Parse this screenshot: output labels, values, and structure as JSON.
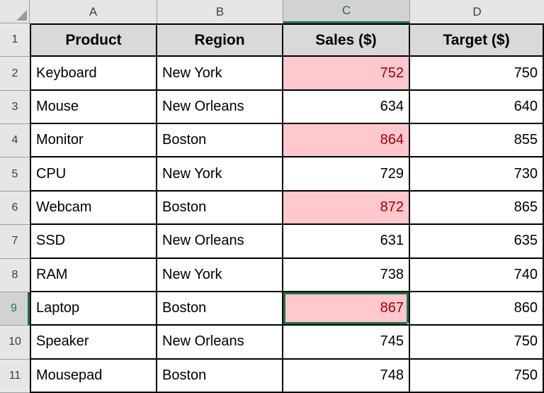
{
  "sheet": {
    "active_cell_ref": "C9",
    "col_headers": [
      {
        "letter": "A",
        "selected": false
      },
      {
        "letter": "B",
        "selected": false
      },
      {
        "letter": "C",
        "selected": true
      },
      {
        "letter": "D",
        "selected": false
      }
    ],
    "header_row": {
      "number": "1",
      "cells": [
        "Product",
        "Region",
        "Sales ($)",
        "Target ($)"
      ]
    },
    "rows": [
      {
        "number": "2",
        "product": "Keyboard",
        "region": "New York",
        "sales": "752",
        "target": "750",
        "sales_above_target": true,
        "active_cell": false
      },
      {
        "number": "3",
        "product": "Mouse",
        "region": "New Orleans",
        "sales": "634",
        "target": "640",
        "sales_above_target": false,
        "active_cell": false
      },
      {
        "number": "4",
        "product": "Monitor",
        "region": "Boston",
        "sales": "864",
        "target": "855",
        "sales_above_target": true,
        "active_cell": false
      },
      {
        "number": "5",
        "product": "CPU",
        "region": "New York",
        "sales": "729",
        "target": "730",
        "sales_above_target": false,
        "active_cell": false
      },
      {
        "number": "6",
        "product": "Webcam",
        "region": "Boston",
        "sales": "872",
        "target": "865",
        "sales_above_target": true,
        "active_cell": false
      },
      {
        "number": "7",
        "product": "SSD",
        "region": "New Orleans",
        "sales": "631",
        "target": "635",
        "sales_above_target": false,
        "active_cell": false
      },
      {
        "number": "8",
        "product": "RAM",
        "region": "New York",
        "sales": "738",
        "target": "740",
        "sales_above_target": false,
        "active_cell": false
      },
      {
        "number": "9",
        "product": "Laptop",
        "region": "Boston",
        "sales": "867",
        "target": "860",
        "sales_above_target": true,
        "active_cell": true
      },
      {
        "number": "10",
        "product": "Speaker",
        "region": "New Orleans",
        "sales": "745",
        "target": "750",
        "sales_above_target": false,
        "active_cell": false
      },
      {
        "number": "11",
        "product": "Mousepad",
        "region": "Boston",
        "sales": "748",
        "target": "750",
        "sales_above_target": false,
        "active_cell": false
      }
    ],
    "colors": {
      "highlight_fill": "#FFC7CE",
      "highlight_text": "#9C0006",
      "selection_green": "#217346",
      "header_row_fill": "#D9D9D9",
      "frame_fill": "#E6E6E6",
      "frame_selected_fill": "#D2D2D2",
      "grid_border": "#000000"
    }
  }
}
